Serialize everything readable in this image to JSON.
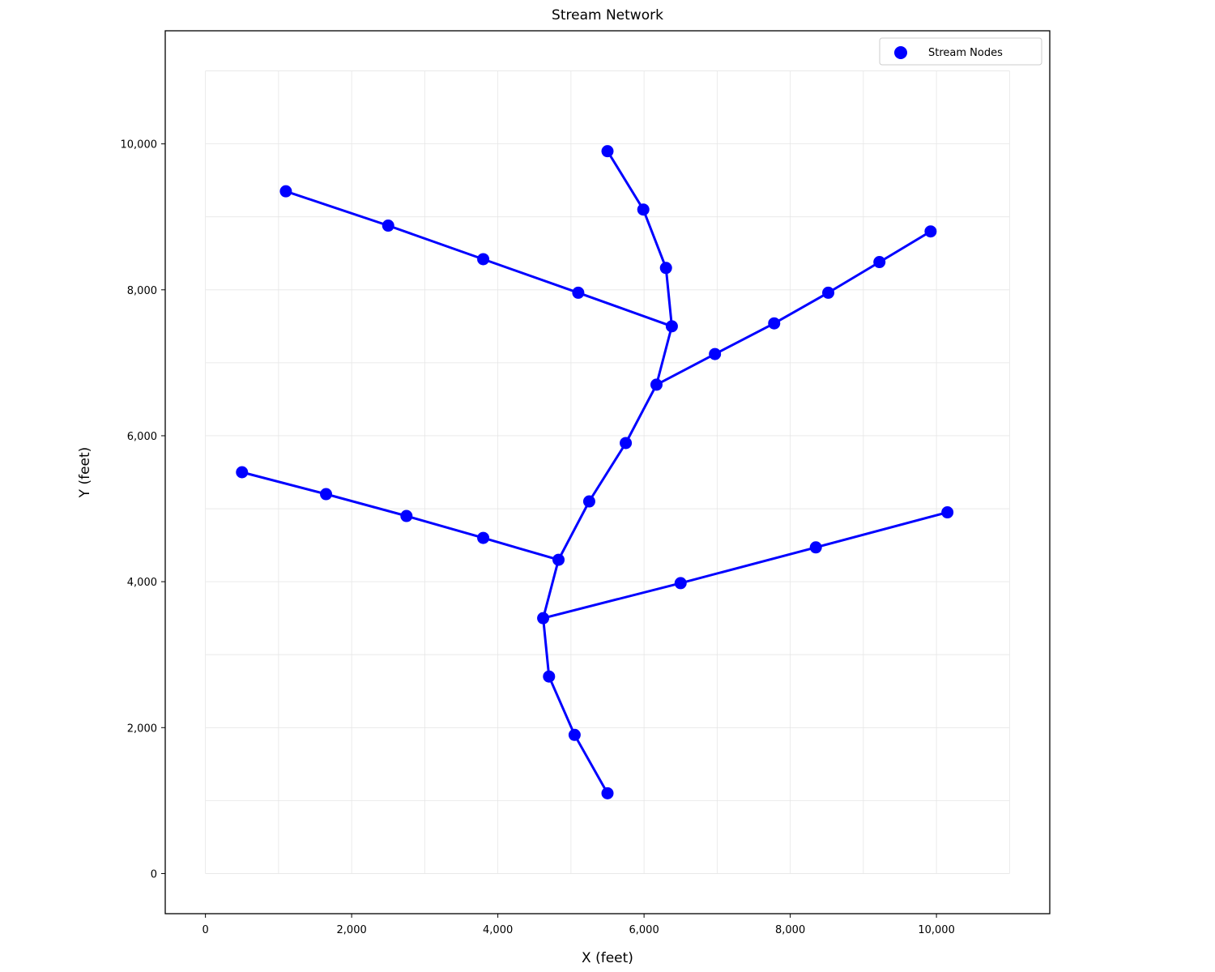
{
  "chart_data": {
    "type": "scatter",
    "title": "Stream Network",
    "xlabel": "X (feet)",
    "ylabel": "Y (feet)",
    "xlim": [
      -550,
      11550
    ],
    "ylim": [
      -550,
      11550
    ],
    "xticks": [
      0,
      2000,
      4000,
      6000,
      8000,
      10000
    ],
    "yticks": [
      0,
      2000,
      4000,
      6000,
      8000,
      10000
    ],
    "xtick_labels": [
      "0",
      "2,000",
      "4,000",
      "6,000",
      "8,000",
      "10,000"
    ],
    "ytick_labels": [
      "0",
      "2,000",
      "4,000",
      "6,000",
      "8,000",
      "10,000"
    ],
    "grid": true,
    "grid_region": [
      0,
      11000
    ],
    "grid_step": 1000,
    "legend": {
      "position": "top-right",
      "entries": [
        "Stream Nodes"
      ]
    },
    "color": "#0000ff",
    "series": [
      {
        "name": "Stream Nodes",
        "points": [
          [
            5500,
            1100
          ],
          [
            5050,
            1900
          ],
          [
            4700,
            2700
          ],
          [
            4620,
            3500
          ],
          [
            4830,
            4300
          ],
          [
            5250,
            5100
          ],
          [
            5750,
            5900
          ],
          [
            6170,
            6700
          ],
          [
            6380,
            7500
          ],
          [
            6300,
            8300
          ],
          [
            5990,
            9100
          ],
          [
            5500,
            9900
          ],
          [
            500,
            5500
          ],
          [
            1650,
            5200
          ],
          [
            2750,
            4900
          ],
          [
            3800,
            4600
          ],
          [
            6500,
            3980
          ],
          [
            8350,
            4470
          ],
          [
            10150,
            4950
          ],
          [
            1100,
            9350
          ],
          [
            2500,
            8880
          ],
          [
            3800,
            8420
          ],
          [
            5100,
            7960
          ],
          [
            6970,
            7120
          ],
          [
            7780,
            7540
          ],
          [
            8520,
            7960
          ],
          [
            9220,
            8380
          ],
          [
            9920,
            8800
          ]
        ]
      }
    ],
    "branches": [
      [
        [
          5500,
          1100
        ],
        [
          5050,
          1900
        ],
        [
          4700,
          2700
        ],
        [
          4620,
          3500
        ],
        [
          4830,
          4300
        ],
        [
          5250,
          5100
        ],
        [
          5750,
          5900
        ],
        [
          6170,
          6700
        ],
        [
          6380,
          7500
        ],
        [
          6300,
          8300
        ],
        [
          5990,
          9100
        ],
        [
          5500,
          9900
        ]
      ],
      [
        [
          500,
          5500
        ],
        [
          1650,
          5200
        ],
        [
          2750,
          4900
        ],
        [
          3800,
          4600
        ],
        [
          4830,
          4300
        ]
      ],
      [
        [
          4620,
          3500
        ],
        [
          6500,
          3980
        ],
        [
          8350,
          4470
        ],
        [
          10150,
          4950
        ]
      ],
      [
        [
          1100,
          9350
        ],
        [
          2500,
          8880
        ],
        [
          3800,
          8420
        ],
        [
          5100,
          7960
        ],
        [
          6380,
          7500
        ]
      ],
      [
        [
          6170,
          6700
        ],
        [
          6970,
          7120
        ],
        [
          7780,
          7540
        ],
        [
          8520,
          7960
        ],
        [
          9220,
          8380
        ],
        [
          9920,
          8800
        ]
      ]
    ]
  }
}
